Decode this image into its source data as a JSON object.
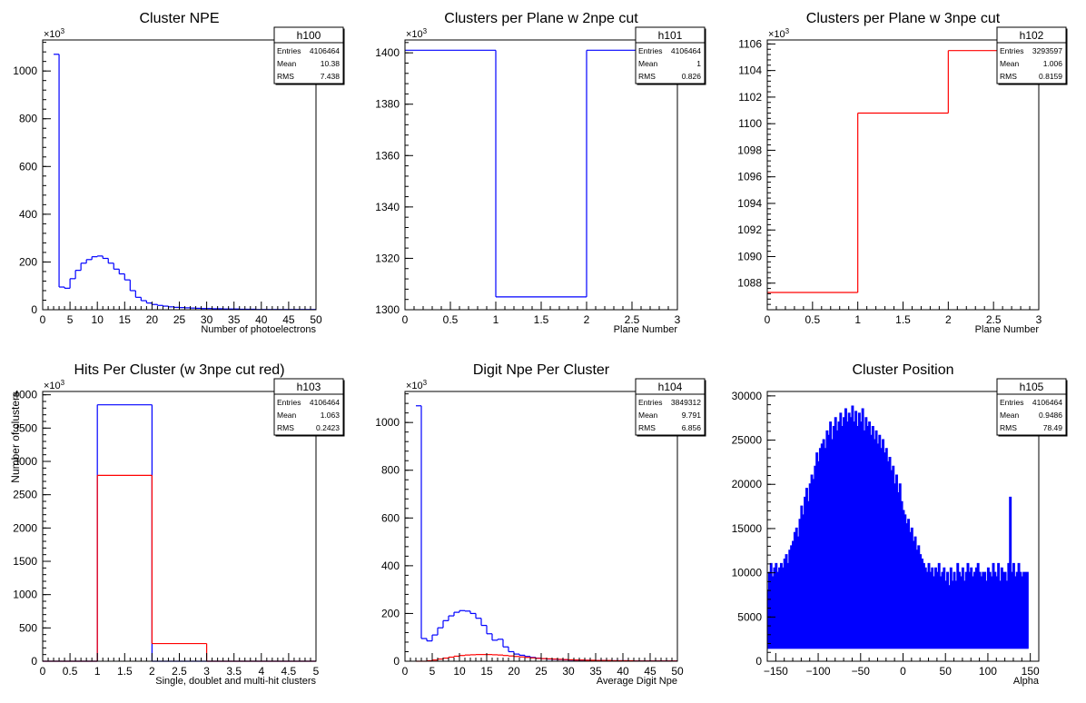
{
  "chart_data": [
    {
      "type": "histogram",
      "title": "Cluster NPE",
      "xlabel": "Number of photoelectrons",
      "ylabel": "",
      "exponent_label": "×10³",
      "xlim": [
        0,
        50
      ],
      "ylim": [
        0,
        1130
      ],
      "xticks": [
        0,
        5,
        10,
        15,
        20,
        25,
        30,
        35,
        40,
        45,
        50
      ],
      "yticks": [
        0,
        200,
        400,
        600,
        800,
        1000
      ],
      "stats": {
        "name": "h100",
        "rows": [
          [
            "Entries",
            "4106464"
          ],
          [
            "Mean",
            "10.38"
          ],
          [
            "RMS",
            "7.438"
          ]
        ]
      },
      "series": [
        {
          "color": "#0000ff",
          "edges_start": 2,
          "bin_width": 1,
          "values": [
            1070,
            95,
            90,
            130,
            165,
            195,
            210,
            222,
            225,
            215,
            195,
            170,
            150,
            125,
            80,
            52,
            38,
            28,
            22,
            18,
            15,
            12,
            10,
            9,
            8,
            7,
            6,
            5,
            5,
            4,
            4,
            3,
            3,
            3,
            2,
            2,
            2,
            1,
            1,
            1,
            1,
            1,
            1,
            1,
            1,
            1,
            1,
            1
          ]
        }
      ]
    },
    {
      "type": "histogram",
      "title": "Clusters per Plane w 2npe cut",
      "xlabel": "Plane Number",
      "ylabel": "",
      "exponent_label": "×10³",
      "xlim": [
        0,
        3
      ],
      "ylim": [
        1300,
        1405
      ],
      "xticks": [
        0,
        0.5,
        1,
        1.5,
        2,
        2.5,
        3
      ],
      "yticks": [
        1300,
        1320,
        1340,
        1360,
        1380,
        1400
      ],
      "stats": {
        "name": "h101",
        "rows": [
          [
            "Entries",
            "4106464"
          ],
          [
            "Mean",
            "1"
          ],
          [
            "RMS",
            "0.826"
          ]
        ]
      },
      "series": [
        {
          "color": "#0000ff",
          "edges_start": 0,
          "bin_width": 1,
          "values": [
            1401,
            1305,
            1401
          ]
        }
      ]
    },
    {
      "type": "histogram",
      "title": "Clusters per Plane w 3npe cut",
      "xlabel": "Plane Number",
      "ylabel": "",
      "exponent_label": "×10³",
      "xlim": [
        0,
        3
      ],
      "ylim": [
        1086,
        1106.3
      ],
      "xticks": [
        0,
        0.5,
        1,
        1.5,
        2,
        2.5,
        3
      ],
      "yticks": [
        1088,
        1090,
        1092,
        1094,
        1096,
        1098,
        1100,
        1102,
        1104,
        1106
      ],
      "stats": {
        "name": "h102",
        "rows": [
          [
            "Entries",
            "3293597"
          ],
          [
            "Mean",
            "1.006"
          ],
          [
            "RMS",
            "0.8159"
          ]
        ]
      },
      "series": [
        {
          "color": "#ff0000",
          "edges_start": 0,
          "bin_width": 1,
          "values": [
            1087.3,
            1100.8,
            1105.5
          ]
        }
      ]
    },
    {
      "type": "histogram",
      "title": "Hits Per Cluster (w 3npe cut red)",
      "xlabel": "Single, doublet and multi-hit clusters",
      "ylabel": "Number of clusters",
      "exponent_label": "×10³",
      "xlim": [
        0,
        5
      ],
      "ylim": [
        0,
        4050
      ],
      "xticks": [
        0,
        0.5,
        1,
        1.5,
        2,
        2.5,
        3,
        3.5,
        4,
        4.5,
        5
      ],
      "yticks": [
        0,
        500,
        1000,
        1500,
        2000,
        2500,
        3000,
        3500,
        4000
      ],
      "stats": {
        "name": "h103",
        "rows": [
          [
            "Entries",
            "4106464"
          ],
          [
            "Mean",
            "1.063"
          ],
          [
            "RMS",
            "0.2423"
          ]
        ]
      },
      "series": [
        {
          "color": "#0000ff",
          "edges_start": 0,
          "bin_width": 1,
          "values": [
            0,
            3850,
            0,
            0,
            0
          ]
        },
        {
          "color": "#ff0000",
          "edges_start": 0,
          "bin_width": 1,
          "values": [
            0,
            2790,
            265,
            0,
            0
          ]
        }
      ]
    },
    {
      "type": "histogram",
      "title": "Digit Npe Per Cluster",
      "xlabel": "Average Digit Npe",
      "ylabel": "",
      "exponent_label": "×10³",
      "xlim": [
        0,
        50
      ],
      "ylim": [
        0,
        1130
      ],
      "xticks": [
        0,
        5,
        10,
        15,
        20,
        25,
        30,
        35,
        40,
        45,
        50
      ],
      "yticks": [
        0,
        200,
        400,
        600,
        800,
        1000
      ],
      "stats": {
        "name": "h104",
        "rows": [
          [
            "Entries",
            "3849312"
          ],
          [
            "Mean",
            "9.791"
          ],
          [
            "RMS",
            "6.856"
          ]
        ]
      },
      "series": [
        {
          "color": "#0000ff",
          "edges_start": 2,
          "bin_width": 1,
          "values": [
            1070,
            95,
            85,
            110,
            140,
            170,
            190,
            205,
            212,
            210,
            200,
            180,
            150,
            115,
            88,
            92,
            60,
            40,
            30,
            25,
            20,
            16,
            13,
            11,
            9,
            8,
            7,
            6,
            5,
            5,
            4,
            4,
            3,
            3,
            3,
            2,
            2,
            2,
            2,
            1,
            1,
            1,
            1,
            1,
            1,
            1,
            1,
            1
          ]
        },
        {
          "color": "#ff0000",
          "edges_start": 2,
          "bin_width": 1,
          "values": [
            0,
            0,
            2,
            5,
            9,
            13,
            17,
            21,
            24,
            26,
            27,
            28,
            28,
            28,
            27,
            26,
            24,
            22,
            20,
            18,
            16,
            14,
            12,
            11,
            10,
            9,
            8,
            7,
            6,
            5,
            5,
            4,
            4,
            3,
            3,
            3,
            2,
            2,
            2,
            2,
            1,
            1,
            1,
            1,
            1,
            1,
            1,
            1
          ]
        }
      ]
    },
    {
      "type": "histogram",
      "title": "Cluster Position",
      "xlabel": "Alpha",
      "ylabel": "",
      "exponent_label": "",
      "xlim": [
        -160,
        160
      ],
      "ylim": [
        0,
        30500
      ],
      "xticks": [
        -150,
        -100,
        -50,
        0,
        50,
        100,
        150
      ],
      "yticks": [
        0,
        5000,
        10000,
        15000,
        20000,
        25000,
        30000
      ],
      "stats": {
        "name": "h105",
        "rows": [
          [
            "Entries",
            "4106464"
          ],
          [
            "Mean",
            "0.9486"
          ],
          [
            "RMS",
            "78.49"
          ]
        ]
      },
      "series": [
        {
          "color": "#0000ff",
          "edges_start": -160,
          "bin_width": 2,
          "comb": true,
          "comb_low": 1500,
          "values": [
            8000,
            10000,
            11000,
            9500,
            10500,
            11000,
            10000,
            10500,
            11000,
            10500,
            11500,
            12000,
            11000,
            12500,
            13000,
            13500,
            14500,
            15000,
            14000,
            16000,
            17500,
            16500,
            18500,
            19500,
            18000,
            20000,
            21000,
            20500,
            22000,
            23500,
            22500,
            24000,
            24500,
            25000,
            24000,
            26000,
            25500,
            27000,
            25000,
            26500,
            27500,
            26000,
            27000,
            28000,
            26500,
            27500,
            28500,
            27000,
            28000,
            27500,
            28800,
            27000,
            28200,
            26500,
            28000,
            27000,
            28500,
            26000,
            27500,
            26500,
            27000,
            25500,
            26500,
            25000,
            26000,
            24500,
            25500,
            24000,
            25000,
            23500,
            24000,
            22500,
            23000,
            21500,
            22000,
            20000,
            21000,
            19000,
            20000,
            18000,
            17000,
            16500,
            15500,
            16000,
            14500,
            15000,
            13500,
            14000,
            12500,
            13000,
            12000,
            11500,
            11000,
            10500,
            10000,
            11000,
            10000,
            10500,
            9500,
            10500,
            10000,
            11000,
            9500,
            10000,
            10500,
            9000,
            10000,
            8500,
            10500,
            9000,
            10000,
            9000,
            11000,
            10000,
            9500,
            10500,
            9000,
            10000,
            11000,
            10000,
            10500,
            9500,
            10000,
            10500,
            11000,
            10000,
            9500,
            10000,
            10000,
            9000,
            10500,
            10000,
            9500,
            11000,
            10000,
            9500,
            11000,
            9000,
            10500,
            10000,
            10000,
            9000,
            11000,
            18500,
            10000,
            11000,
            9500,
            10000,
            11000,
            10000,
            9500,
            10000,
            10000,
            10000
          ]
        }
      ]
    }
  ]
}
